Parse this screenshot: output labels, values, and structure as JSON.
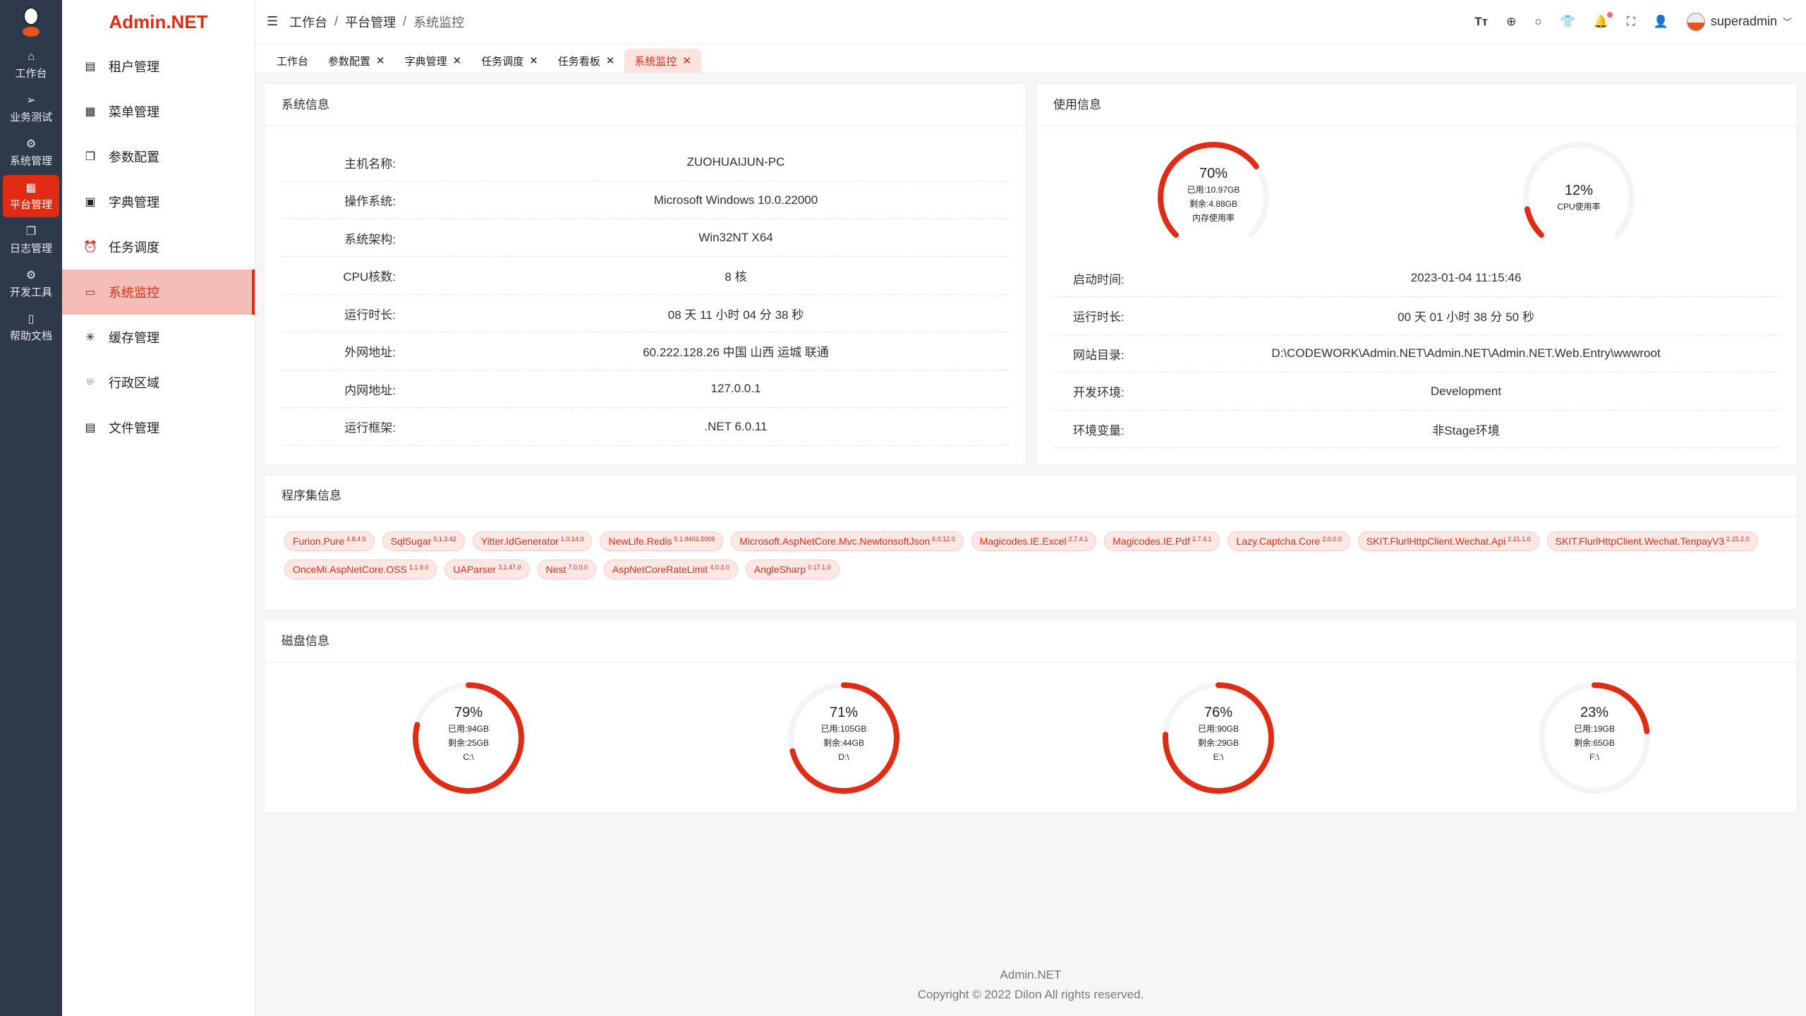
{
  "brand": "Admin.NET",
  "rail": [
    {
      "icon": "home-icon",
      "glyph": "⌂",
      "label": "工作台"
    },
    {
      "icon": "send-icon",
      "glyph": "➢",
      "label": "业务测试"
    },
    {
      "icon": "gear-icon",
      "glyph": "⚙",
      "label": "系统管理"
    },
    {
      "icon": "grid-icon",
      "glyph": "▦",
      "label": "平台管理",
      "active": true
    },
    {
      "icon": "copy-icon",
      "glyph": "❐",
      "label": "日志管理"
    },
    {
      "icon": "chip-icon",
      "glyph": "⚙",
      "label": "开发工具"
    },
    {
      "icon": "notebook-icon",
      "glyph": "▯",
      "label": "帮助文档"
    }
  ],
  "menu": [
    {
      "icon": "building-icon",
      "glyph": "▤",
      "label": "租户管理"
    },
    {
      "icon": "grid-icon",
      "glyph": "▦",
      "label": "菜单管理"
    },
    {
      "icon": "copy-icon",
      "glyph": "❐",
      "label": "参数配置"
    },
    {
      "icon": "book-icon",
      "glyph": "▣",
      "label": "字典管理"
    },
    {
      "icon": "alarm-icon",
      "glyph": "⏰",
      "label": "任务调度"
    },
    {
      "icon": "monitor-icon",
      "glyph": "▭",
      "label": "系统监控",
      "active": true
    },
    {
      "icon": "loading-icon",
      "glyph": "✳",
      "label": "缓存管理"
    },
    {
      "icon": "location-icon",
      "glyph": "⌾",
      "label": "行政区域"
    },
    {
      "icon": "document-icon",
      "glyph": "▤",
      "label": "文件管理"
    }
  ],
  "breadcrumb": [
    "工作台",
    "平台管理",
    "系统监控"
  ],
  "user": {
    "name": "superadmin"
  },
  "tabs": [
    {
      "label": "工作台",
      "closable": false
    },
    {
      "label": "参数配置",
      "closable": true
    },
    {
      "label": "字典管理",
      "closable": true
    },
    {
      "label": "任务调度",
      "closable": true
    },
    {
      "label": "任务看板",
      "closable": true
    },
    {
      "label": "系统监控",
      "closable": true,
      "active": true
    }
  ],
  "close_glyph": "✕",
  "sysinfo": {
    "title": "系统信息",
    "rows": [
      {
        "label": "主机名称:",
        "value": "ZUOHUAIJUN-PC"
      },
      {
        "label": "操作系统:",
        "value": "Microsoft Windows 10.0.22000"
      },
      {
        "label": "系统架构:",
        "value": "Win32NT X64"
      },
      {
        "label": "CPU核数:",
        "value": "8 核"
      },
      {
        "label": "运行时长:",
        "value": "08 天 11 小时 04 分 38 秒"
      },
      {
        "label": "外网地址:",
        "value": "60.222.128.26 中国 山西 运城 联通"
      },
      {
        "label": "内网地址:",
        "value": "127.0.0.1"
      },
      {
        "label": "运行框架:",
        "value": ".NET 6.0.11"
      }
    ]
  },
  "usage": {
    "title": "使用信息",
    "memory": {
      "percent": 70,
      "used": "已用:10.97GB",
      "free": "剩余:4.88GB",
      "label": "内存使用率"
    },
    "cpu": {
      "percent": 12,
      "label": "CPU使用率"
    },
    "rows": [
      {
        "label": "启动时间:",
        "value": "2023-01-04 11:15:46"
      },
      {
        "label": "运行时长:",
        "value": "00 天 01 小时 38 分 50 秒"
      },
      {
        "label": "网站目录:",
        "value": "D:\\CODEWORK\\Admin.NET\\Admin.NET\\Admin.NET.Web.Entry\\wwwroot"
      },
      {
        "label": "开发环境:",
        "value": "Development"
      },
      {
        "label": "环境变量:",
        "value": "非Stage环境"
      }
    ]
  },
  "assemblies": {
    "title": "程序集信息",
    "items": [
      {
        "name": "Furion.Pure",
        "version": "4.8.4.5"
      },
      {
        "name": "SqlSugar",
        "version": "5.1.3.42"
      },
      {
        "name": "Yitter.IdGenerator",
        "version": "1.0.14.0"
      },
      {
        "name": "NewLife.Redis",
        "version": "5.1.8401.5009"
      },
      {
        "name": "Microsoft.AspNetCore.Mvc.NewtonsoftJson",
        "version": "6.0.12.0"
      },
      {
        "name": "Magicodes.IE.Excel",
        "version": "2.7.4.1"
      },
      {
        "name": "Magicodes.IE.Pdf",
        "version": "2.7.4.1"
      },
      {
        "name": "Lazy.Captcha.Core",
        "version": "2.0.0.0"
      },
      {
        "name": "SKIT.FlurlHttpClient.Wechat.Api",
        "version": "2.21.1.0"
      },
      {
        "name": "SKIT.FlurlHttpClient.Wechat.TenpayV3",
        "version": "2.15.2.0"
      },
      {
        "name": "OnceMi.AspNetCore.OSS",
        "version": "1.1.9.0"
      },
      {
        "name": "UAParser",
        "version": "3.1.47.0"
      },
      {
        "name": "Nest",
        "version": "7.0.0.0"
      },
      {
        "name": "AspNetCoreRateLimit",
        "version": "4.0.2.0"
      },
      {
        "name": "AngleSharp",
        "version": "0.17.1.0"
      }
    ]
  },
  "disks": {
    "title": "磁盘信息",
    "items": [
      {
        "percent": 79,
        "used": "已用:94GB",
        "free": "剩余:25GB",
        "drive": "C:\\"
      },
      {
        "percent": 71,
        "used": "已用:105GB",
        "free": "剩余:44GB",
        "drive": "D:\\"
      },
      {
        "percent": 76,
        "used": "已用:90GB",
        "free": "剩余:29GB",
        "drive": "E:\\"
      },
      {
        "percent": 23,
        "used": "已用:19GB",
        "free": "剩余:65GB",
        "drive": "F:\\"
      }
    ]
  },
  "colors": {
    "accent": "#e02c14",
    "track": "#f2f4f8"
  },
  "footer": {
    "name": "Admin.NET",
    "copyright": "Copyright © 2022 Dilon All rights reserved."
  }
}
